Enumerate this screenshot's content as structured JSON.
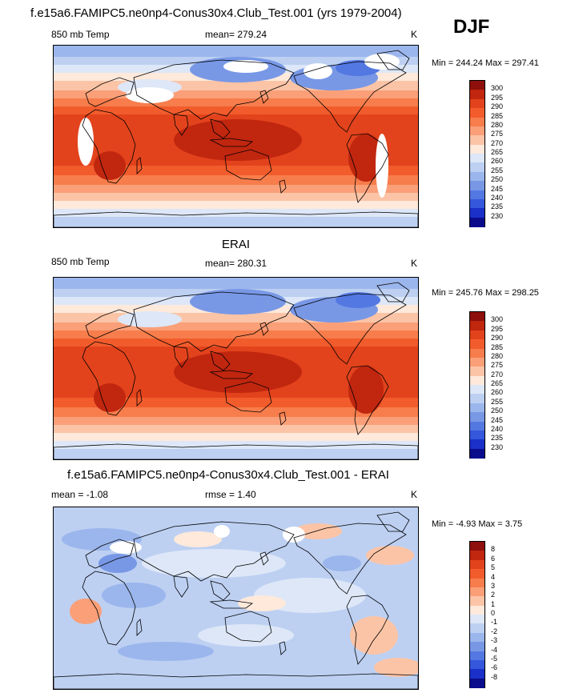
{
  "header": {
    "title": "f.e15a6.FAMIPC5.ne0np4-Conus30x4.Club_Test.001 (yrs 1979-2004)",
    "season": "DJF"
  },
  "panel1": {
    "left_label": "850 mb Temp",
    "mean_text": "mean= 279.24",
    "units": "K",
    "minmax": "Min = 244.24 Max = 297.41"
  },
  "panel2": {
    "title": "ERAI",
    "left_label": "850 mb Temp",
    "mean_text": "mean= 280.31",
    "units": "K",
    "minmax": "Min = 245.76 Max = 298.25"
  },
  "panel3": {
    "title": "f.e15a6.FAMIPC5.ne0np4-Conus30x4.Club_Test.001 - ERAI",
    "mean_text": "mean =  -1.08",
    "rmse_text": "rmse =   1.40",
    "units": "K",
    "minmax": "Min =  -4.93 Max =   3.75"
  },
  "chart_data": [
    {
      "type": "heatmap",
      "title": "850 mb Temp",
      "variable": "850 mb Temp",
      "units": "K",
      "mean": 279.24,
      "min": 244.24,
      "max": 297.41,
      "colorbar_levels": [
        300,
        295,
        290,
        285,
        280,
        275,
        270,
        265,
        260,
        255,
        250,
        245,
        240,
        235,
        230
      ],
      "colorbar_colors": [
        "#8e0f0b",
        "#c1260f",
        "#e2431c",
        "#f25c2c",
        "#f77d4c",
        "#fa9f78",
        "#fcc4a6",
        "#fee9db",
        "#dde7f7",
        "#bdd0f2",
        "#9bb6ec",
        "#7898e6",
        "#5478e2",
        "#3457dc",
        "#1a30c8",
        "#0b0c8c"
      ]
    },
    {
      "type": "heatmap",
      "title": "ERAI",
      "variable": "850 mb Temp",
      "units": "K",
      "mean": 280.31,
      "min": 245.76,
      "max": 298.25,
      "colorbar_levels": [
        300,
        295,
        290,
        285,
        280,
        275,
        270,
        265,
        260,
        255,
        250,
        245,
        240,
        235,
        230
      ],
      "colorbar_colors": [
        "#8e0f0b",
        "#c1260f",
        "#e2431c",
        "#f25c2c",
        "#f77d4c",
        "#fa9f78",
        "#fcc4a6",
        "#fee9db",
        "#dde7f7",
        "#bdd0f2",
        "#9bb6ec",
        "#7898e6",
        "#5478e2",
        "#3457dc",
        "#1a30c8",
        "#0b0c8c"
      ]
    },
    {
      "type": "heatmap",
      "title": "f.e15a6.FAMIPC5.ne0np4-Conus30x4.Club_Test.001 - ERAI",
      "units": "K",
      "mean": -1.08,
      "rmse": 1.4,
      "min": -4.93,
      "max": 3.75,
      "colorbar_levels": [
        "8",
        "6",
        "5",
        "4",
        "3",
        "2",
        "1",
        "0",
        "-1",
        "-2",
        "-3",
        "-4",
        "-5",
        "-6",
        "-8"
      ],
      "colorbar_colors": [
        "#8e0f0b",
        "#c1260f",
        "#e2431c",
        "#f25c2c",
        "#f77d4c",
        "#fa9f78",
        "#fcc4a6",
        "#fee9db",
        "#dde7f7",
        "#bdd0f2",
        "#9bb6ec",
        "#7898e6",
        "#5478e2",
        "#3457dc",
        "#1a30c8",
        "#0b0c8c"
      ]
    }
  ]
}
